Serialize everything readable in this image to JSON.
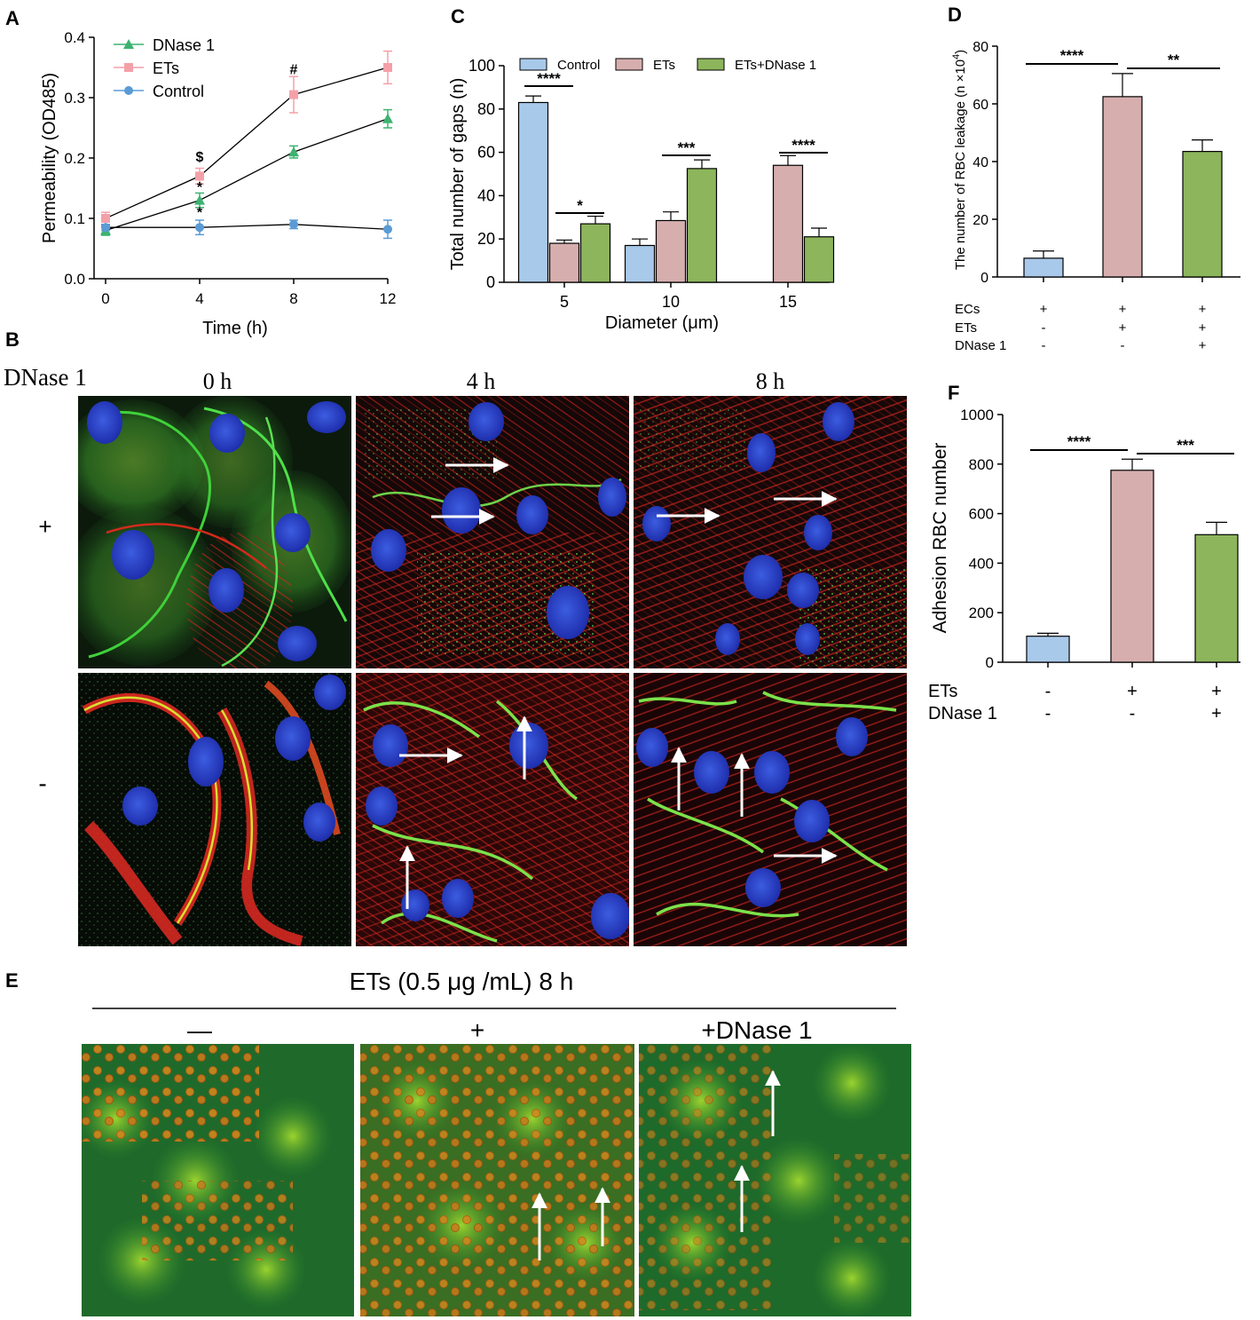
{
  "panels": {
    "A": "A",
    "B": "B",
    "C": "C",
    "D": "D",
    "E": "E",
    "F": "F"
  },
  "colors": {
    "control": "#a9c9ea",
    "ets": "#d7aeae",
    "dnase": "#8db55c",
    "controlLine": "#5b9bd5",
    "etsLine": "#f4a0a8",
    "dnaseLine": "#3cb371"
  },
  "chart_data": [
    {
      "id": "A",
      "type": "line",
      "x": [
        0,
        4,
        8,
        12
      ],
      "xticks": [
        "0",
        "4",
        "8",
        "12"
      ],
      "xlabel": "Time (h)",
      "ylabel": "Permeability (OD485)",
      "ylim": [
        0,
        0.4
      ],
      "yticks": [
        "0.0",
        "0.1",
        "0.2",
        "0.3",
        "0.4"
      ],
      "series": [
        {
          "name": "DNase 1",
          "marker": "triangle",
          "values": [
            0.08,
            0.13,
            0.21,
            0.265
          ],
          "errors": [
            0.008,
            0.012,
            0.01,
            0.015
          ]
        },
        {
          "name": "ETs",
          "marker": "square",
          "values": [
            0.1,
            0.17,
            0.305,
            0.35
          ],
          "errors": [
            0.01,
            0.013,
            0.03,
            0.027
          ]
        },
        {
          "name": "Control",
          "marker": "circle",
          "values": [
            0.085,
            0.085,
            0.09,
            0.082
          ],
          "errors": [
            0.005,
            0.012,
            0.007,
            0.015
          ]
        }
      ],
      "annotations": [
        {
          "text": "$",
          "x": 4,
          "y": 0.2
        },
        {
          "text": "*",
          "x": 4,
          "y": 0.15
        },
        {
          "text": "*",
          "x": 4,
          "y": 0.108
        },
        {
          "text": "#",
          "x": 8,
          "y": 0.345
        }
      ]
    },
    {
      "id": "C",
      "type": "bar",
      "categories": [
        "5",
        "10",
        "15"
      ],
      "xlabel": "Diameter (μm)",
      "ylabel": "Total number of gaps (n)",
      "ylim": [
        0,
        100
      ],
      "yticks": [
        "0",
        "20",
        "40",
        "60",
        "80",
        "100"
      ],
      "series": [
        {
          "name": "Control",
          "values": [
            83,
            17,
            null
          ],
          "errors": [
            3,
            3,
            null
          ]
        },
        {
          "name": "ETs",
          "values": [
            18,
            28.5,
            54
          ],
          "errors": [
            1.5,
            4,
            4.5
          ]
        },
        {
          "name": "ETs+DNase 1",
          "values": [
            27,
            52.5,
            21
          ],
          "errors": [
            3.5,
            4,
            4
          ]
        }
      ],
      "significance": [
        {
          "text": "****",
          "category": 0,
          "from": 0,
          "to": 1
        },
        {
          "text": "*",
          "category": 0,
          "from": 1,
          "to": 2
        },
        {
          "text": "***",
          "category": 1,
          "from": 1,
          "to": 2
        },
        {
          "text": "****",
          "category": 2,
          "from": 1,
          "to": 2
        }
      ]
    },
    {
      "id": "D",
      "type": "bar",
      "ylabel_prefix": "The number of RBC leakage (n ×10",
      "ylabel_sup": "4",
      "ylabel_suffix": ")",
      "ylim": [
        0,
        80
      ],
      "yticks": [
        "0",
        "20",
        "40",
        "60",
        "80"
      ],
      "values": [
        6.5,
        62.5,
        43.5
      ],
      "errors": [
        2.5,
        8,
        4
      ],
      "rows": [
        {
          "label": "ECs",
          "signs": [
            "+",
            "+",
            "+"
          ]
        },
        {
          "label": "ETs",
          "signs": [
            "-",
            "+",
            "+"
          ]
        },
        {
          "label": "DNase 1",
          "signs": [
            "-",
            "-",
            "+"
          ]
        }
      ],
      "significance": [
        {
          "text": "****",
          "from": 0,
          "to": 1
        },
        {
          "text": "**",
          "from": 1,
          "to": 2
        }
      ]
    },
    {
      "id": "F",
      "type": "bar",
      "ylabel": "Adhesion RBC number",
      "ylim": [
        0,
        1000
      ],
      "yticks": [
        "0",
        "200",
        "400",
        "600",
        "800",
        "1000"
      ],
      "values": [
        105,
        775,
        515
      ],
      "errors": [
        12,
        45,
        50
      ],
      "rows": [
        {
          "label": "ETs",
          "signs": [
            "-",
            "+",
            "+"
          ]
        },
        {
          "label": "DNase 1",
          "signs": [
            "-",
            "-",
            "+"
          ]
        }
      ],
      "significance": [
        {
          "text": "****",
          "from": 0,
          "to": 1
        },
        {
          "text": "***",
          "from": 1,
          "to": 2
        }
      ]
    }
  ],
  "panelB": {
    "rowHeader": "DNase 1",
    "columns": [
      "0 h",
      "4 h",
      "8 h"
    ],
    "rows": [
      "+",
      "-"
    ]
  },
  "panelE": {
    "title": "ETs (0.5 μg /mL)  8 h",
    "columns": [
      "—",
      "+",
      "+DNase 1"
    ]
  }
}
